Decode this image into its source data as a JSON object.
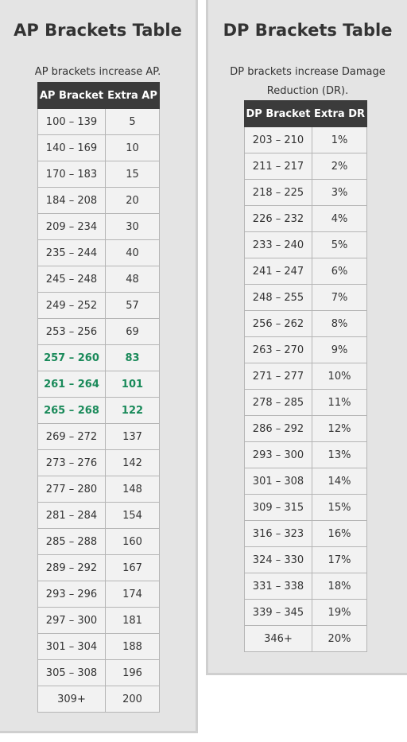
{
  "ap": {
    "title": "AP Brackets Table",
    "description": "AP brackets increase AP.",
    "headers": [
      "AP Bracket",
      "Extra AP"
    ],
    "highlight_color": "#1a8a5a",
    "rows": [
      {
        "bracket": "100 – 139",
        "value": "5",
        "highlight": false
      },
      {
        "bracket": "140 – 169",
        "value": "10",
        "highlight": false
      },
      {
        "bracket": "170 – 183",
        "value": "15",
        "highlight": false
      },
      {
        "bracket": "184 – 208",
        "value": "20",
        "highlight": false
      },
      {
        "bracket": "209 – 234",
        "value": "30",
        "highlight": false
      },
      {
        "bracket": "235 – 244",
        "value": "40",
        "highlight": false
      },
      {
        "bracket": "245 – 248",
        "value": "48",
        "highlight": false
      },
      {
        "bracket": "249 – 252",
        "value": "57",
        "highlight": false
      },
      {
        "bracket": "253 – 256",
        "value": "69",
        "highlight": false
      },
      {
        "bracket": "257 – 260",
        "value": "83",
        "highlight": true
      },
      {
        "bracket": "261 – 264",
        "value": "101",
        "highlight": true
      },
      {
        "bracket": "265 – 268",
        "value": "122",
        "highlight": true
      },
      {
        "bracket": "269 – 272",
        "value": "137",
        "highlight": false
      },
      {
        "bracket": "273 – 276",
        "value": "142",
        "highlight": false
      },
      {
        "bracket": "277 – 280",
        "value": "148",
        "highlight": false
      },
      {
        "bracket": "281 – 284",
        "value": "154",
        "highlight": false
      },
      {
        "bracket": "285 – 288",
        "value": "160",
        "highlight": false
      },
      {
        "bracket": "289 – 292",
        "value": "167",
        "highlight": false
      },
      {
        "bracket": "293 – 296",
        "value": "174",
        "highlight": false
      },
      {
        "bracket": "297 – 300",
        "value": "181",
        "highlight": false
      },
      {
        "bracket": "301 – 304",
        "value": "188",
        "highlight": false
      },
      {
        "bracket": "305 – 308",
        "value": "196",
        "highlight": false
      },
      {
        "bracket": "309+",
        "value": "200",
        "highlight": false
      }
    ]
  },
  "dp": {
    "title": "DP Brackets Table",
    "description": "DP brackets increase Damage Reduction (DR).",
    "headers": [
      "DP Bracket",
      "Extra DR"
    ],
    "rows": [
      {
        "bracket": "203 – 210",
        "value": "1%"
      },
      {
        "bracket": "211 – 217",
        "value": "2%"
      },
      {
        "bracket": "218 – 225",
        "value": "3%"
      },
      {
        "bracket": "226 – 232",
        "value": "4%"
      },
      {
        "bracket": "233 – 240",
        "value": "5%"
      },
      {
        "bracket": "241 – 247",
        "value": "6%"
      },
      {
        "bracket": "248 – 255",
        "value": "7%"
      },
      {
        "bracket": "256 – 262",
        "value": "8%"
      },
      {
        "bracket": "263 – 270",
        "value": "9%"
      },
      {
        "bracket": "271 – 277",
        "value": "10%"
      },
      {
        "bracket": "278 – 285",
        "value": "11%"
      },
      {
        "bracket": "286 – 292",
        "value": "12%"
      },
      {
        "bracket": "293 – 300",
        "value": "13%"
      },
      {
        "bracket": "301 – 308",
        "value": "14%"
      },
      {
        "bracket": "309 – 315",
        "value": "15%"
      },
      {
        "bracket": "316 – 323",
        "value": "16%"
      },
      {
        "bracket": "324 – 330",
        "value": "17%"
      },
      {
        "bracket": "331 – 338",
        "value": "18%"
      },
      {
        "bracket": "339 – 345",
        "value": "19%"
      },
      {
        "bracket": "346+",
        "value": "20%"
      }
    ]
  }
}
